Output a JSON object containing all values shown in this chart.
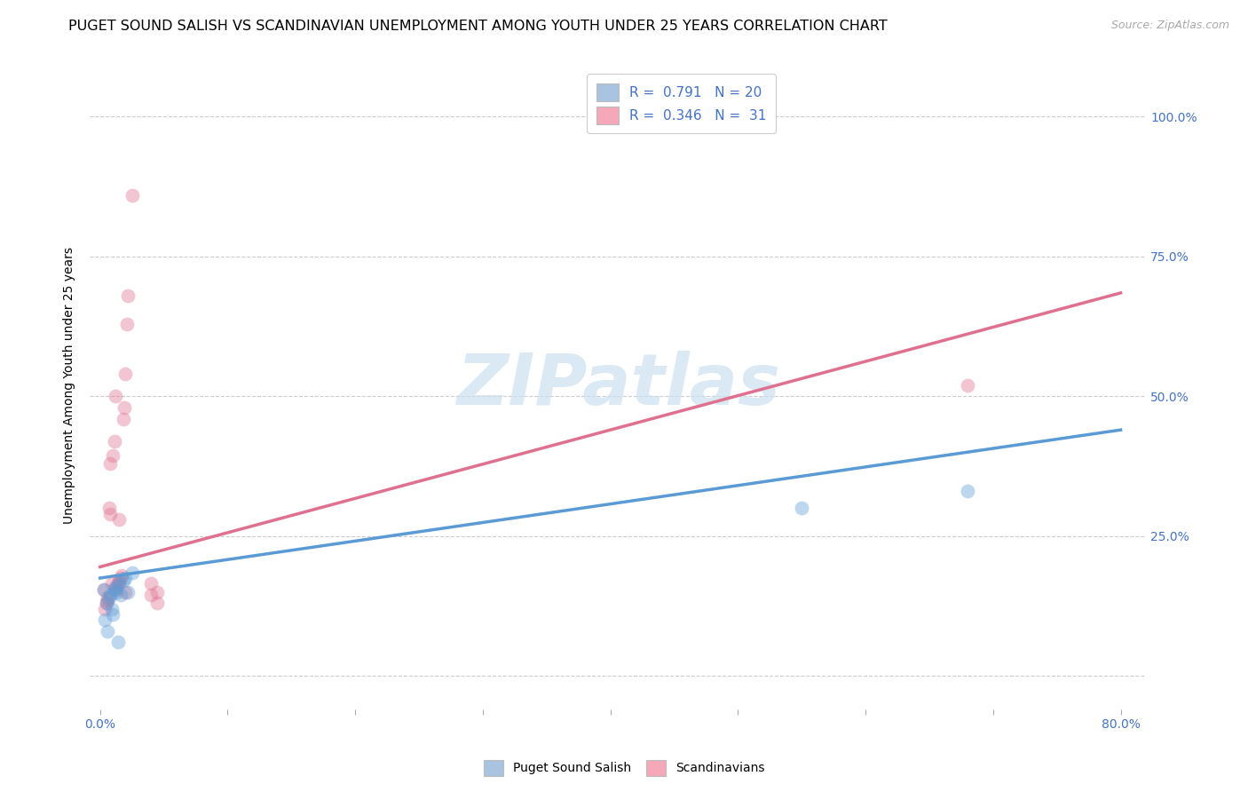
{
  "title": "PUGET SOUND SALISH VS SCANDINAVIAN UNEMPLOYMENT AMONG YOUTH UNDER 25 YEARS CORRELATION CHART",
  "source": "Source: ZipAtlas.com",
  "ylabel": "Unemployment Among Youth under 25 years",
  "xlim": [
    -0.008,
    0.82
  ],
  "ylim": [
    -0.06,
    1.1
  ],
  "x_tick_positions": [
    0.0,
    0.1,
    0.2,
    0.3,
    0.4,
    0.5,
    0.6,
    0.7,
    0.8
  ],
  "x_tick_labels": [
    "0.0%",
    "",
    "",
    "",
    "",
    "",
    "",
    "",
    "80.0%"
  ],
  "y_tick_positions": [
    0.0,
    0.25,
    0.5,
    0.75,
    1.0
  ],
  "y_tick_labels_right": [
    "",
    "25.0%",
    "50.0%",
    "75.0%",
    "100.0%"
  ],
  "legend_color1": "#a8c4e0",
  "legend_color2": "#f4a8b8",
  "legend_text1": "R =  0.791   N = 20",
  "legend_text2": "R =  0.346   N =  31",
  "blue_color": "#5b9bd5",
  "pink_color": "#e07090",
  "blue_scatter_x": [
    0.003,
    0.004,
    0.005,
    0.006,
    0.007,
    0.008,
    0.009,
    0.01,
    0.011,
    0.012,
    0.013,
    0.014,
    0.015,
    0.016,
    0.018,
    0.02,
    0.022,
    0.025,
    0.55,
    0.68
  ],
  "blue_scatter_y": [
    0.155,
    0.1,
    0.13,
    0.08,
    0.14,
    0.145,
    0.12,
    0.11,
    0.155,
    0.16,
    0.15,
    0.06,
    0.165,
    0.145,
    0.17,
    0.175,
    0.15,
    0.185,
    0.3,
    0.33
  ],
  "pink_scatter_x": [
    0.003,
    0.004,
    0.005,
    0.006,
    0.006,
    0.007,
    0.008,
    0.008,
    0.009,
    0.01,
    0.011,
    0.012,
    0.013,
    0.013,
    0.014,
    0.015,
    0.015,
    0.016,
    0.017,
    0.018,
    0.019,
    0.02,
    0.021,
    0.022,
    0.025,
    0.04,
    0.04,
    0.045,
    0.045,
    0.68,
    0.02
  ],
  "pink_scatter_y": [
    0.155,
    0.12,
    0.13,
    0.135,
    0.14,
    0.3,
    0.29,
    0.38,
    0.165,
    0.395,
    0.42,
    0.5,
    0.155,
    0.16,
    0.165,
    0.17,
    0.28,
    0.175,
    0.18,
    0.46,
    0.48,
    0.54,
    0.63,
    0.68,
    0.86,
    0.165,
    0.145,
    0.15,
    0.13,
    0.52,
    0.15
  ],
  "blue_line_x0": 0.0,
  "blue_line_x1": 0.8,
  "blue_line_y0": 0.175,
  "blue_line_y1": 0.44,
  "pink_line_x0": 0.0,
  "pink_line_x1": 0.8,
  "pink_line_y0": 0.195,
  "pink_line_y1": 0.685,
  "watermark_text": "ZIPatlas",
  "watermark_color": "#cce0f0",
  "title_fontsize": 11.5,
  "tick_fontsize": 10,
  "ylabel_fontsize": 10,
  "source_fontsize": 9
}
